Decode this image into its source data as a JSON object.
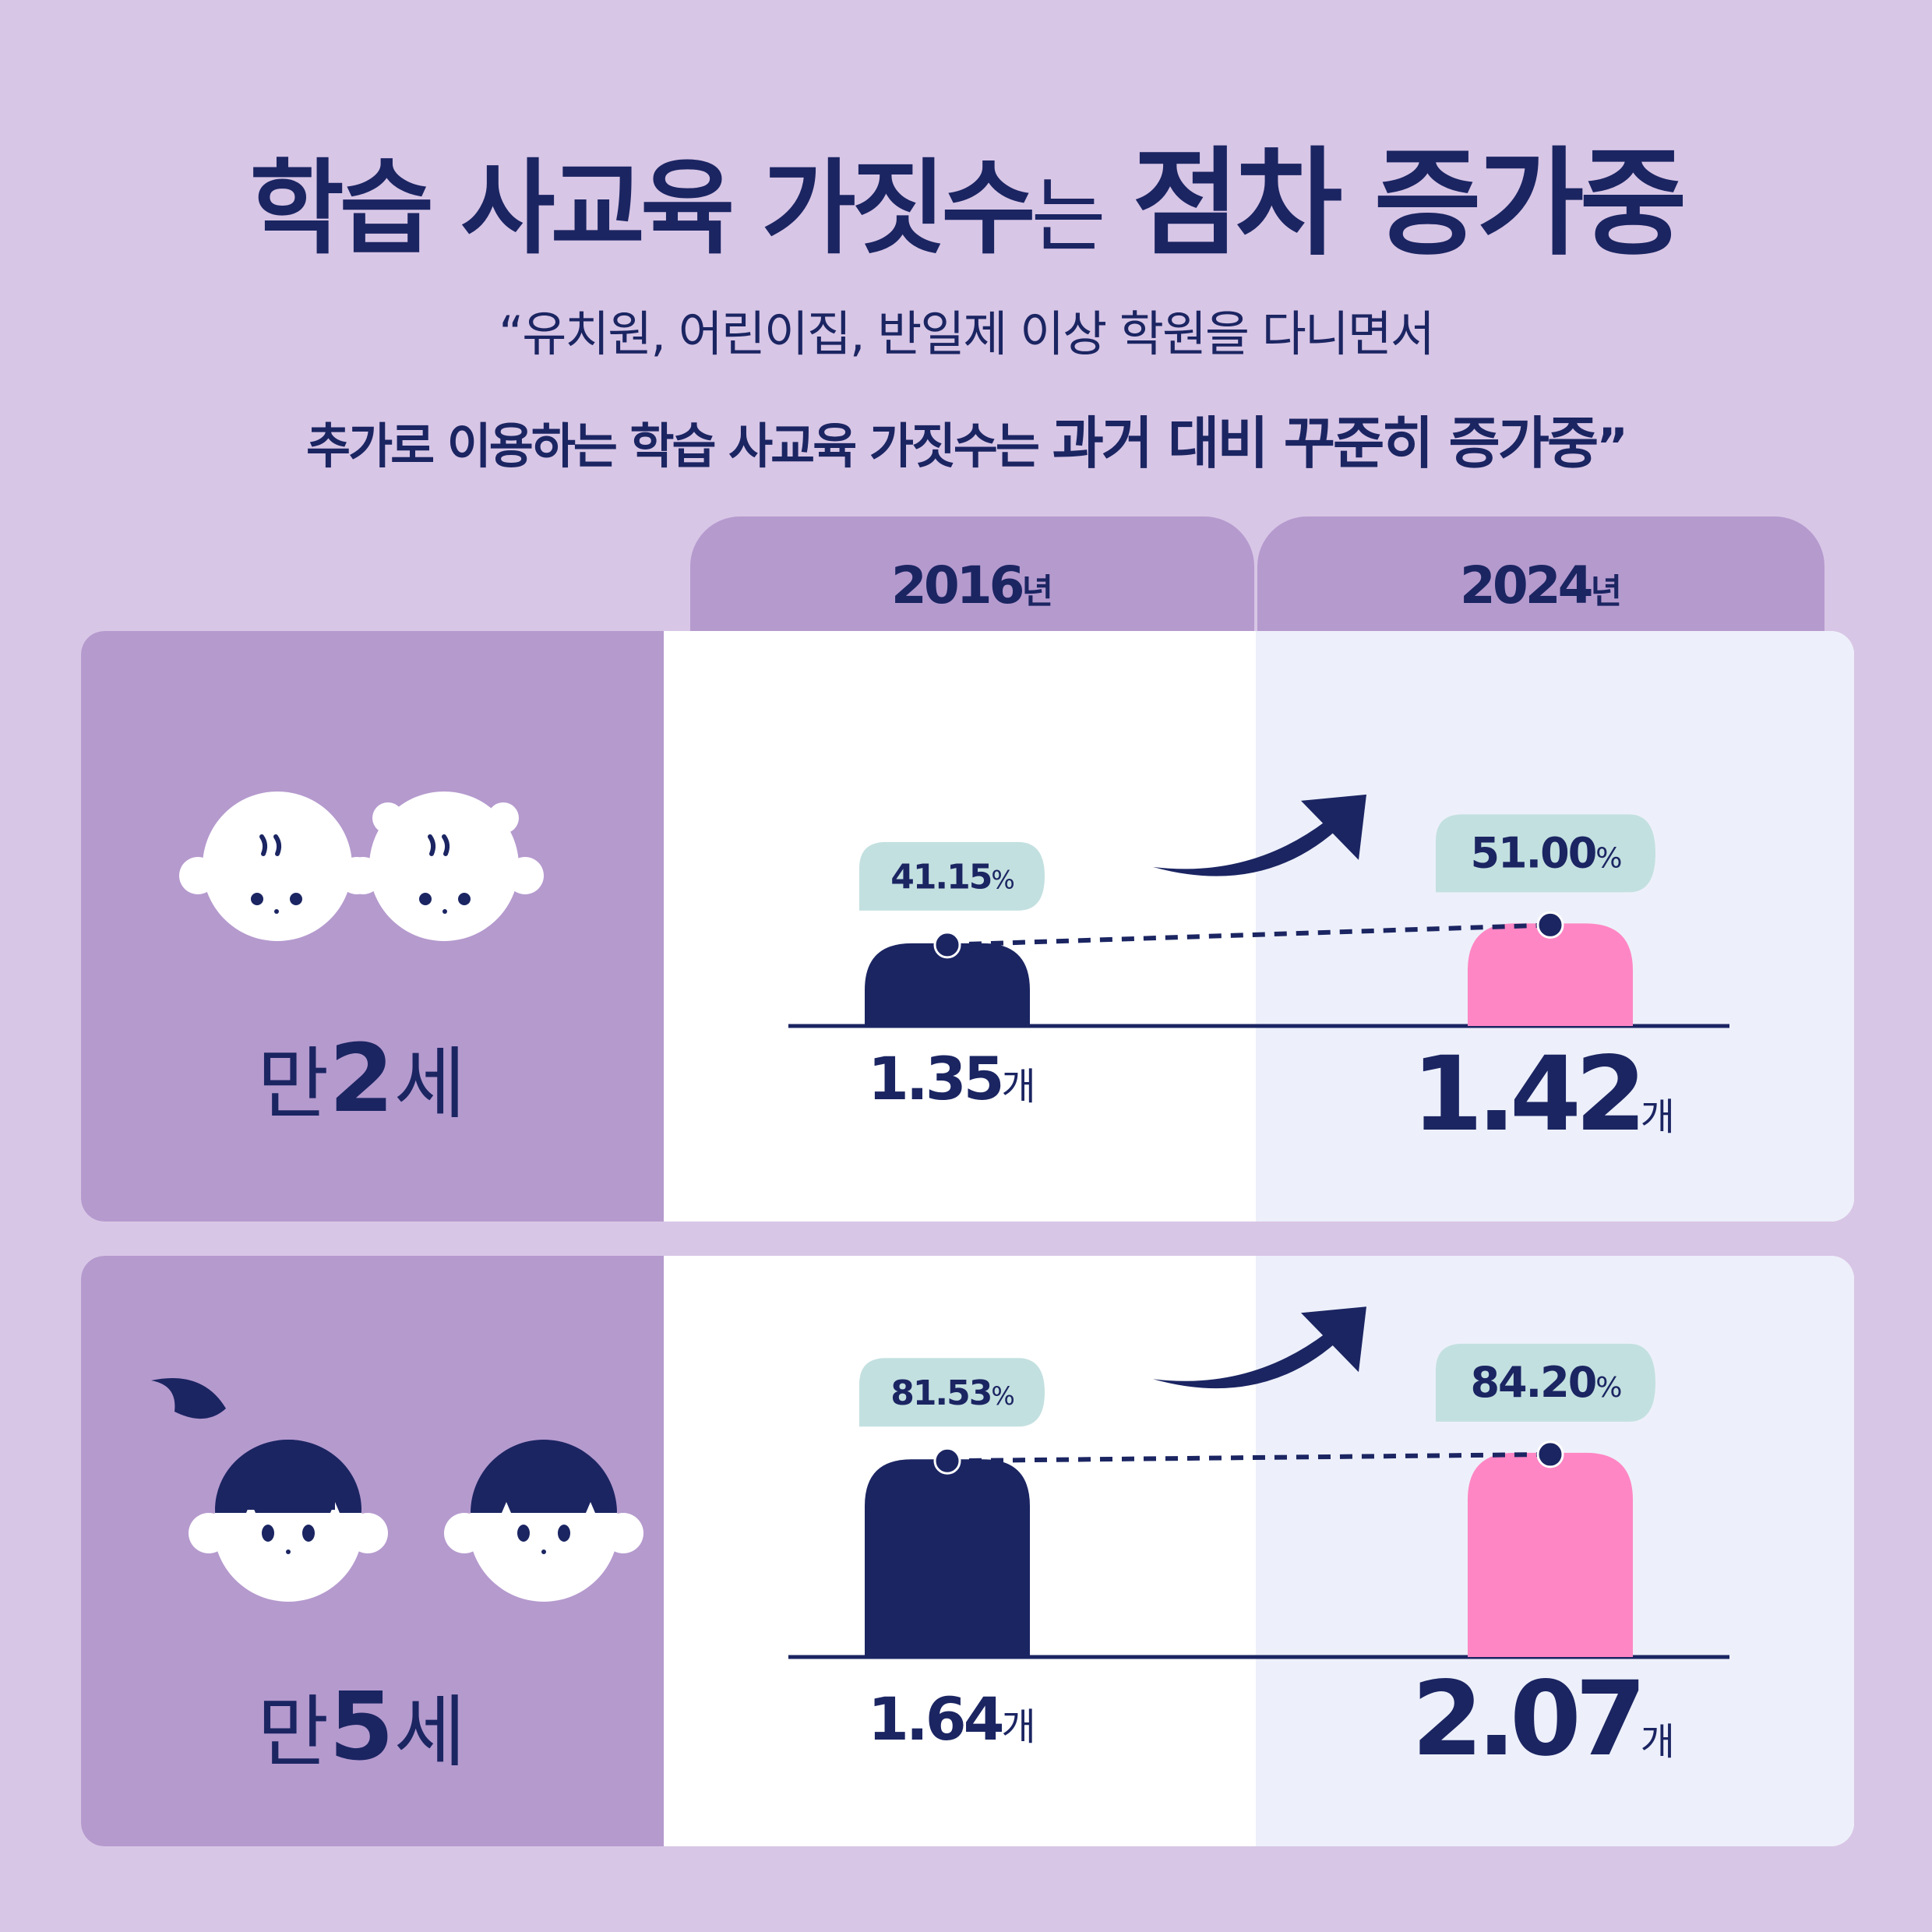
{
  "header": {
    "title_part1": "학습 사교육 가짓수",
    "title_part2": "는",
    "title_part3": "점차 증가중",
    "subtitle_line1": "“유치원, 어린이집, 반일제 이상 학원을 다니면서",
    "subtitle_line2_part1": "추가로 이용하는 학습 사교육 가짓수는",
    "subtitle_line2_part2": "과거 대비 꾸준히 증가중",
    "subtitle_line2_close": "”"
  },
  "columns": [
    {
      "year": "2016",
      "unit": "년"
    },
    {
      "year": "2024",
      "unit": "년"
    }
  ],
  "rows": [
    {
      "age_prefix": "만",
      "age_num": "2",
      "age_suffix": "세"
    },
    {
      "age_prefix": "만",
      "age_num": "5",
      "age_suffix": "세"
    }
  ],
  "chart_data": [
    {
      "type": "bar",
      "title": "만2세",
      "categories": [
        "2016년",
        "2024년"
      ],
      "values": [
        1.35,
        1.42
      ],
      "value_labels": [
        "1.35",
        "1.42"
      ],
      "value_unit": "개",
      "percents": [
        41.15,
        51.0
      ],
      "percent_labels": [
        "41.15",
        "51.00"
      ],
      "percent_unit": "%",
      "colors": [
        "#1b2562",
        "#ff86c4"
      ]
    },
    {
      "type": "bar",
      "title": "만5세",
      "categories": [
        "2016년",
        "2024년"
      ],
      "values": [
        1.64,
        2.07
      ],
      "value_labels": [
        "1.64",
        "2.07"
      ],
      "value_unit": "개",
      "percents": [
        81.53,
        84.2
      ],
      "percent_labels": [
        "81.53",
        "84.20"
      ],
      "percent_unit": "%",
      "colors": [
        "#1b2562",
        "#ff86c4"
      ]
    }
  ],
  "colors": {
    "background": "#d8c6e6",
    "panel_purple": "#b59ace",
    "navy": "#1b2562",
    "pink": "#ff86c4",
    "pill": "#c3e0e0",
    "light_panel": "#edf0fa"
  },
  "icons": [
    "baby-boy-icon",
    "baby-girl-icon",
    "girl-ponytail-icon",
    "boy-bangs-icon",
    "trend-up-arrow-icon"
  ]
}
